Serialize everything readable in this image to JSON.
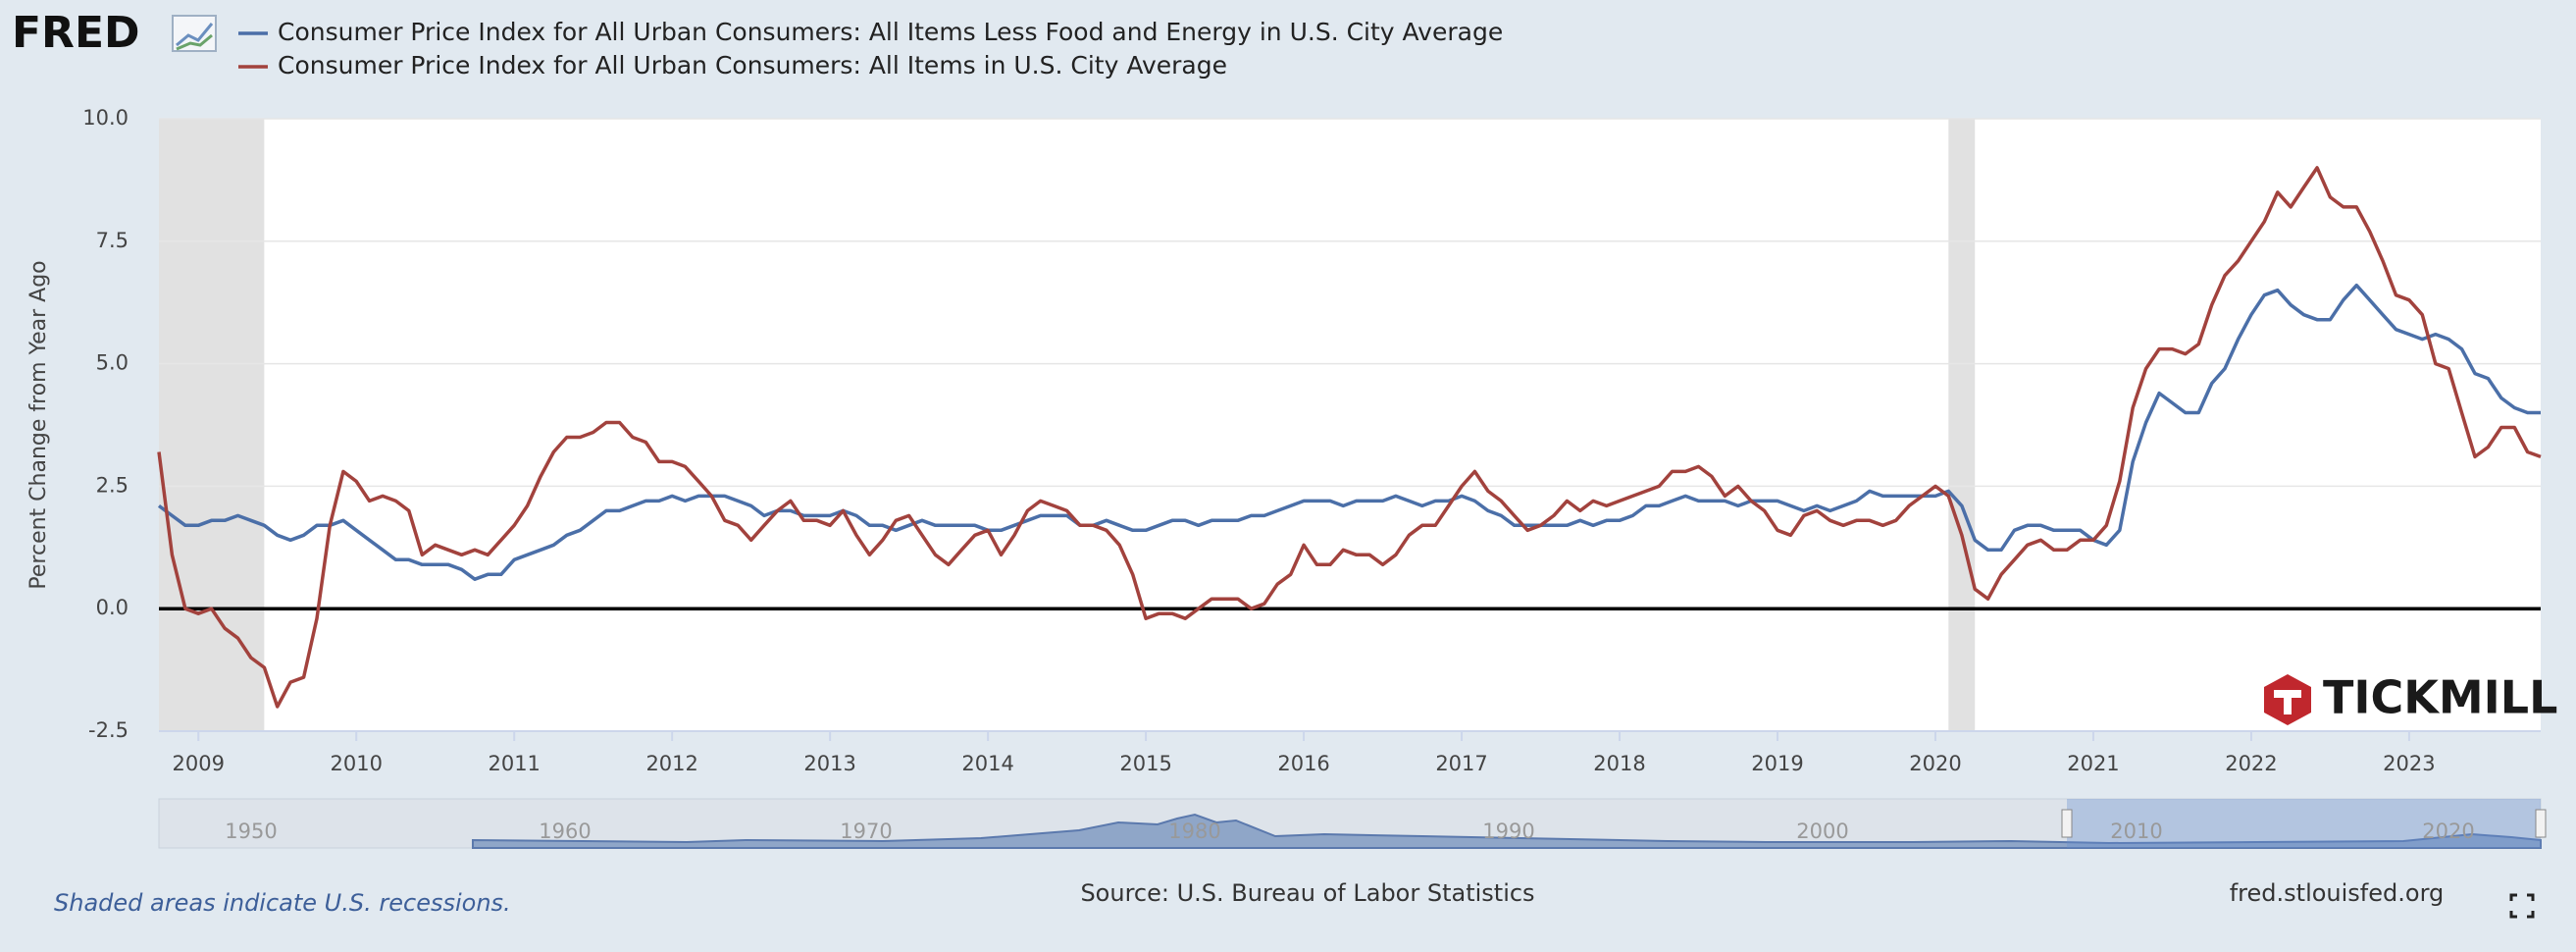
{
  "logo": "FRED",
  "chart_data": {
    "type": "line",
    "ylabel": "Percent Change from Year Ago",
    "x": [
      2008.75,
      2008.833,
      2008.917,
      2009,
      2009.083,
      2009.167,
      2009.25,
      2009.333,
      2009.417,
      2009.5,
      2009.583,
      2009.667,
      2009.75,
      2009.833,
      2009.917,
      2010,
      2010.083,
      2010.167,
      2010.25,
      2010.333,
      2010.417,
      2010.5,
      2010.583,
      2010.667,
      2010.75,
      2010.833,
      2010.917,
      2011,
      2011.083,
      2011.167,
      2011.25,
      2011.333,
      2011.417,
      2011.5,
      2011.583,
      2011.667,
      2011.75,
      2011.833,
      2011.917,
      2012,
      2012.083,
      2012.167,
      2012.25,
      2012.333,
      2012.417,
      2012.5,
      2012.583,
      2012.667,
      2012.75,
      2012.833,
      2012.917,
      2013,
      2013.083,
      2013.167,
      2013.25,
      2013.333,
      2013.417,
      2013.5,
      2013.583,
      2013.667,
      2013.75,
      2013.833,
      2013.917,
      2014,
      2014.083,
      2014.167,
      2014.25,
      2014.333,
      2014.417,
      2014.5,
      2014.583,
      2014.667,
      2014.75,
      2014.833,
      2014.917,
      2015,
      2015.083,
      2015.167,
      2015.25,
      2015.333,
      2015.417,
      2015.5,
      2015.583,
      2015.667,
      2015.75,
      2015.833,
      2015.917,
      2016,
      2016.083,
      2016.167,
      2016.25,
      2016.333,
      2016.417,
      2016.5,
      2016.583,
      2016.667,
      2016.75,
      2016.833,
      2016.917,
      2017,
      2017.083,
      2017.167,
      2017.25,
      2017.333,
      2017.417,
      2017.5,
      2017.583,
      2017.667,
      2017.75,
      2017.833,
      2017.917,
      2018,
      2018.083,
      2018.167,
      2018.25,
      2018.333,
      2018.417,
      2018.5,
      2018.583,
      2018.667,
      2018.75,
      2018.833,
      2018.917,
      2019,
      2019.083,
      2019.167,
      2019.25,
      2019.333,
      2019.417,
      2019.5,
      2019.583,
      2019.667,
      2019.75,
      2019.833,
      2019.917,
      2020,
      2020.083,
      2020.167,
      2020.25,
      2020.333,
      2020.417,
      2020.5,
      2020.583,
      2020.667,
      2020.75,
      2020.833,
      2020.917,
      2021,
      2021.083,
      2021.167,
      2021.25,
      2021.333,
      2021.417,
      2021.5,
      2021.583,
      2021.667,
      2021.75,
      2021.833,
      2021.917,
      2022,
      2022.083,
      2022.167,
      2022.25,
      2022.333,
      2022.417,
      2022.5,
      2022.583,
      2022.667,
      2022.75,
      2022.833,
      2022.917,
      2023,
      2023.083,
      2023.167,
      2023.25,
      2023.333,
      2023.417,
      2023.5,
      2023.583,
      2023.667,
      2023.75,
      2023.833
    ],
    "series": [
      {
        "name": "Consumer Price Index for All Urban Consumers: All Items Less Food and Energy in U.S. City Average",
        "color": "#4b6fa8",
        "values": [
          2.1,
          1.9,
          1.7,
          1.7,
          1.8,
          1.8,
          1.9,
          1.8,
          1.7,
          1.5,
          1.4,
          1.5,
          1.7,
          1.7,
          1.8,
          1.6,
          1.4,
          1.2,
          1.0,
          1.0,
          0.9,
          0.9,
          0.9,
          0.8,
          0.6,
          0.7,
          0.7,
          1.0,
          1.1,
          1.2,
          1.3,
          1.5,
          1.6,
          1.8,
          2.0,
          2.0,
          2.1,
          2.2,
          2.2,
          2.3,
          2.2,
          2.3,
          2.3,
          2.3,
          2.2,
          2.1,
          1.9,
          2.0,
          2.0,
          1.9,
          1.9,
          1.9,
          2.0,
          1.9,
          1.7,
          1.7,
          1.6,
          1.7,
          1.8,
          1.7,
          1.7,
          1.7,
          1.7,
          1.6,
          1.6,
          1.7,
          1.8,
          1.9,
          1.9,
          1.9,
          1.7,
          1.7,
          1.8,
          1.7,
          1.6,
          1.6,
          1.7,
          1.8,
          1.8,
          1.7,
          1.8,
          1.8,
          1.8,
          1.9,
          1.9,
          2.0,
          2.1,
          2.2,
          2.2,
          2.2,
          2.1,
          2.2,
          2.2,
          2.2,
          2.3,
          2.2,
          2.1,
          2.2,
          2.2,
          2.3,
          2.2,
          2.0,
          1.9,
          1.7,
          1.7,
          1.7,
          1.7,
          1.7,
          1.8,
          1.7,
          1.8,
          1.8,
          1.9,
          2.1,
          2.1,
          2.2,
          2.3,
          2.2,
          2.2,
          2.2,
          2.1,
          2.2,
          2.2,
          2.2,
          2.1,
          2.0,
          2.1,
          2.0,
          2.1,
          2.2,
          2.4,
          2.3,
          2.3,
          2.3,
          2.3,
          2.3,
          2.4,
          2.1,
          1.4,
          1.2,
          1.2,
          1.6,
          1.7,
          1.7,
          1.6,
          1.6,
          1.6,
          1.4,
          1.3,
          1.6,
          3.0,
          3.8,
          4.4,
          4.2,
          4.0,
          4.0,
          4.6,
          4.9,
          5.5,
          6.0,
          6.4,
          6.5,
          6.2,
          6.0,
          5.9,
          5.9,
          6.3,
          6.6,
          6.3,
          6.0,
          5.7,
          5.6,
          5.5,
          5.6,
          5.5,
          5.3,
          4.8,
          4.7,
          4.3,
          4.1,
          4.0,
          4.0
        ]
      },
      {
        "name": "Consumer Price Index for All Urban Consumers: All Items in U.S. City Average",
        "color": "#a2423d",
        "values": [
          3.2,
          1.1,
          0.0,
          -0.1,
          0.0,
          -0.4,
          -0.6,
          -1.0,
          -1.2,
          -2.0,
          -1.5,
          -1.4,
          -0.2,
          1.7,
          2.8,
          2.6,
          2.2,
          2.3,
          2.2,
          2.0,
          1.1,
          1.3,
          1.2,
          1.1,
          1.2,
          1.1,
          1.4,
          1.7,
          2.1,
          2.7,
          3.2,
          3.5,
          3.5,
          3.6,
          3.8,
          3.8,
          3.5,
          3.4,
          3.0,
          3.0,
          2.9,
          2.6,
          2.3,
          1.8,
          1.7,
          1.4,
          1.7,
          2.0,
          2.2,
          1.8,
          1.8,
          1.7,
          2.0,
          1.5,
          1.1,
          1.4,
          1.8,
          1.9,
          1.5,
          1.1,
          0.9,
          1.2,
          1.5,
          1.6,
          1.1,
          1.5,
          2.0,
          2.2,
          2.1,
          2.0,
          1.7,
          1.7,
          1.6,
          1.3,
          0.7,
          -0.2,
          -0.1,
          -0.1,
          -0.2,
          0.0,
          0.2,
          0.2,
          0.2,
          0.0,
          0.1,
          0.5,
          0.7,
          1.3,
          0.9,
          0.9,
          1.2,
          1.1,
          1.1,
          0.9,
          1.1,
          1.5,
          1.7,
          1.7,
          2.1,
          2.5,
          2.8,
          2.4,
          2.2,
          1.9,
          1.6,
          1.7,
          1.9,
          2.2,
          2.0,
          2.2,
          2.1,
          2.2,
          2.3,
          2.4,
          2.5,
          2.8,
          2.8,
          2.9,
          2.7,
          2.3,
          2.5,
          2.2,
          2.0,
          1.6,
          1.5,
          1.9,
          2.0,
          1.8,
          1.7,
          1.8,
          1.8,
          1.7,
          1.8,
          2.1,
          2.3,
          2.5,
          2.3,
          1.5,
          0.4,
          0.2,
          0.7,
          1.0,
          1.3,
          1.4,
          1.2,
          1.2,
          1.4,
          1.4,
          1.7,
          2.6,
          4.1,
          4.9,
          5.3,
          5.3,
          5.2,
          5.4,
          6.2,
          6.8,
          7.1,
          7.5,
          7.9,
          8.5,
          8.2,
          8.6,
          9.0,
          8.4,
          8.2,
          8.2,
          7.7,
          7.1,
          6.4,
          6.3,
          6.0,
          5.0,
          4.9,
          4.0,
          3.1,
          3.3,
          3.7,
          3.7,
          3.2,
          3.1
        ]
      }
    ],
    "xlim": [
      2008.75,
      2023.833
    ],
    "xticks": [
      2009,
      2010,
      2011,
      2012,
      2013,
      2014,
      2015,
      2016,
      2017,
      2018,
      2019,
      2020,
      2021,
      2022,
      2023
    ],
    "ylim": [
      -2.5,
      10
    ],
    "yticks": [
      {
        "value": -2.5,
        "label": "-2.5"
      },
      {
        "value": 0,
        "label": "0.0"
      },
      {
        "value": 2.5,
        "label": "2.5"
      },
      {
        "value": 5,
        "label": "5.0"
      },
      {
        "value": 7.5,
        "label": "7.5"
      },
      {
        "value": 10,
        "label": "10.0"
      }
    ],
    "grid": true,
    "recessions": [
      [
        2008.75,
        2009.417
      ],
      [
        2020.083,
        2020.25
      ]
    ],
    "navigator_labels": [
      "1950",
      "1960",
      "1970",
      "1980",
      "1990",
      "2000",
      "2010",
      "2020"
    ],
    "recession_note": "Shaded areas indicate U.S. recessions.",
    "source": "Source: U.S. Bureau of Labor Statistics",
    "site": "fred.stlouisfed.org",
    "watermark": "TICKMILL"
  }
}
